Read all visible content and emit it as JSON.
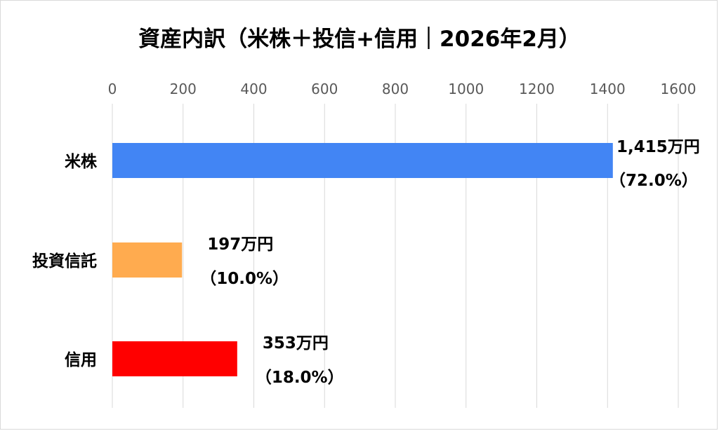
{
  "chart_data": {
    "type": "bar",
    "orientation": "horizontal",
    "title": "資産内訳（米株＋投信+信用｜2026年2月）",
    "categories": [
      "米株",
      "投資信託",
      "信用"
    ],
    "values": [
      1415,
      197,
      353
    ],
    "bar_colors": [
      "#4285f4",
      "#ffab4f",
      "#ff0000"
    ],
    "data_labels": [
      "1,415万円",
      "197万円",
      "353万円"
    ],
    "percent_labels": [
      "（72.0%）",
      "（10.0%）",
      "（18.0%）"
    ],
    "xlim": [
      0,
      1600
    ],
    "x_ticks": [
      "0",
      "200",
      "400",
      "600",
      "800",
      "1000",
      "1200",
      "1400",
      "1600"
    ],
    "x_axis_position": "top",
    "grid": true,
    "legend": "none"
  }
}
